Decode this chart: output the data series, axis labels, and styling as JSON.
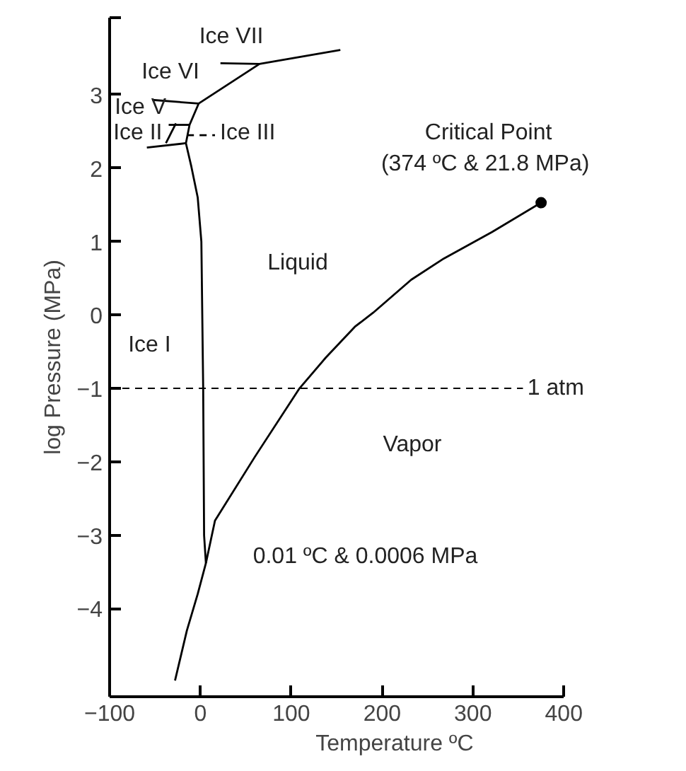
{
  "chart_data": {
    "type": "line",
    "xlabel": "Temperature ºC",
    "ylabel": "log Pressure (MPa)",
    "xlim": [
      -100,
      400
    ],
    "ylim": [
      -5.2,
      4.05
    ],
    "xticks": [
      {
        "value": -100,
        "label": "−100"
      },
      0,
      100,
      200,
      300,
      400
    ],
    "yticks": [
      {
        "value": -4,
        "label": "−4"
      },
      {
        "value": -3,
        "label": "−3"
      },
      {
        "value": -2,
        "label": "−2"
      },
      {
        "value": -1,
        "label": "−1"
      },
      0,
      1,
      2,
      3,
      {
        "value": 4.05,
        "label": null
      }
    ],
    "grid": false,
    "series": [
      {
        "color": "#000000",
        "x": [
          -28,
          -15,
          -3,
          6,
          16,
          60,
          109,
          138,
          170,
          190,
          232,
          268,
          321,
          375
        ],
        "values": [
          -4.98,
          -4.3,
          -3.8,
          -3.38,
          -2.8,
          -1.93,
          -1.0,
          -0.58,
          -0.16,
          0.03,
          0.48,
          0.77,
          1.13,
          1.53
        ]
      },
      {
        "color": "#000000",
        "x": [
          6,
          4,
          3,
          1,
          -3,
          -10,
          -16,
          -12,
          -2,
          65,
          154
        ],
        "values": [
          -3.38,
          -3.0,
          -1.0,
          1.0,
          1.6,
          2.02,
          2.34,
          2.59,
          2.88,
          3.42,
          3.61
        ]
      },
      {
        "color": "#000000",
        "x": [
          22,
          65
        ],
        "values": [
          3.43,
          3.42
        ]
      },
      {
        "color": "#000000",
        "x": [
          -53,
          -2
        ],
        "values": [
          2.93,
          2.88
        ]
      },
      {
        "color": "#000000",
        "x": [
          -35,
          -12
        ],
        "values": [
          2.59,
          2.59
        ]
      },
      {
        "color": "#000000",
        "x": [
          -38,
          -27
        ],
        "values": [
          2.34,
          2.61
        ]
      },
      {
        "color": "#000000",
        "x": [
          -59,
          -16
        ],
        "values": [
          2.28,
          2.34
        ]
      },
      {
        "color": "#000000",
        "x": [
          -15,
          16
        ],
        "values": [
          2.45,
          2.45
        ],
        "line_style": "dashed"
      },
      {
        "type": "scatter",
        "marker": "circle",
        "color": "#000000",
        "x": [
          375
        ],
        "values": [
          1.53
        ]
      }
    ],
    "ref_lines": [
      {
        "axis": "y",
        "value": -1,
        "label": "1 atm",
        "line_style": "dashed",
        "color": "#000000"
      }
    ],
    "annotations": [
      "Ice VII",
      "Ice VI",
      "Ice V",
      "Ice II",
      "Ice III",
      "Critical Point",
      "(374 ºC  & 21.8 MPa)",
      "Liquid",
      "Ice I",
      "Vapor",
      "0.01 ºC  & 0.0006 MPa"
    ]
  }
}
